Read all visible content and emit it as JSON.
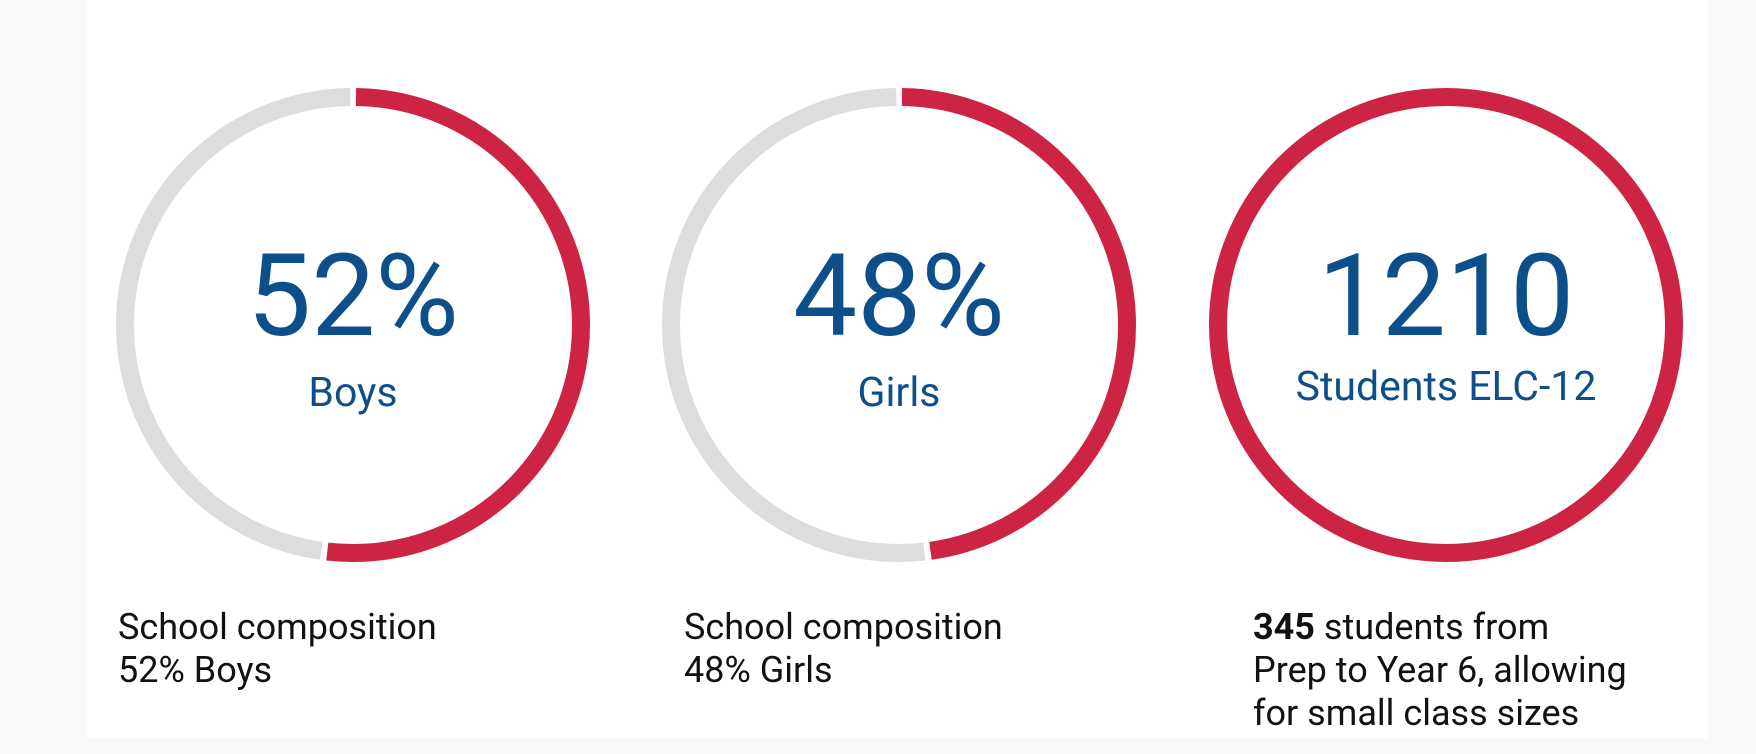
{
  "stats": [
    {
      "value": 52,
      "value_label": "52%",
      "label": "Boys",
      "ring": "progress",
      "caption_lines": [
        "School composition",
        "52% Boys"
      ]
    },
    {
      "value": 48,
      "value_label": "48%",
      "label": "Girls",
      "ring": "progress",
      "caption_lines": [
        "School composition",
        "48% Girls"
      ]
    },
    {
      "value": 1210,
      "label": "Students ELC-12",
      "ring": "full",
      "caption_lead": "345",
      "caption_lines": [
        "students from",
        "Prep to Year 6, allowing",
        "for small class sizes"
      ]
    }
  ],
  "colors": {
    "accent": "#cc2442",
    "track": "#dcdddf",
    "number": "#0d4f8b"
  }
}
